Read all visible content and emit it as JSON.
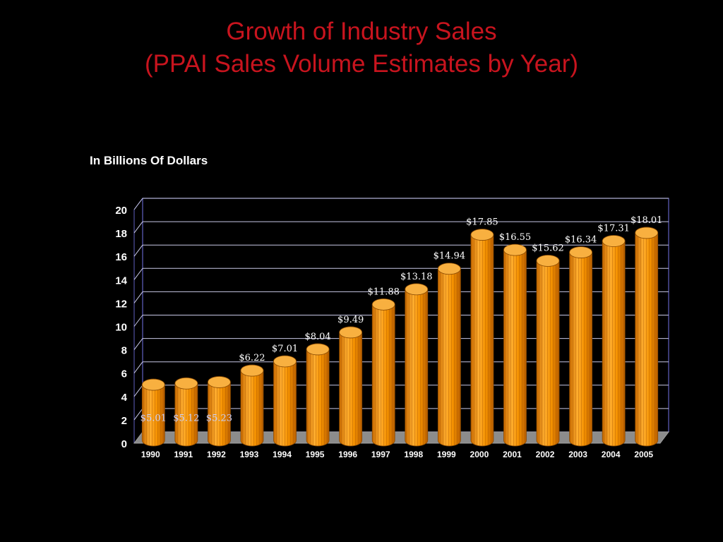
{
  "chart_data": {
    "type": "bar",
    "title_line1": "Growth of Industry Sales",
    "title_line2": "(PPAI Sales Volume Estimates by Year)",
    "ylabel": "In Billions Of Dollars",
    "categories": [
      "1990",
      "1991",
      "1992",
      "1993",
      "1994",
      "1995",
      "1996",
      "1997",
      "1998",
      "1999",
      "2000",
      "2001",
      "2002",
      "2003",
      "2004",
      "2005"
    ],
    "values": [
      5.01,
      5.12,
      5.23,
      6.22,
      7.01,
      8.04,
      9.49,
      11.88,
      13.18,
      14.94,
      17.85,
      16.55,
      15.62,
      16.34,
      17.31,
      18.01
    ],
    "data_labels": [
      "$5.01",
      "$5.12",
      "$5.23",
      "$6.22",
      "$7.01",
      "$8.04",
      "$9.49",
      "$11.88",
      "$13.18",
      "$14.94",
      "$17.85",
      "$16.55",
      "$15.62",
      "$16.34",
      "$17.31",
      "$18.01"
    ],
    "ylim": [
      0,
      20
    ],
    "yticks": [
      "0",
      "2",
      "4",
      "6",
      "8",
      "10",
      "12",
      "14",
      "16",
      "18",
      "20"
    ],
    "grid": true,
    "legend": "none",
    "colors": {
      "bar": "#f39a10",
      "bar_dark": "#b85e00",
      "bar_top": "#f8b040",
      "label": "#ffffff",
      "label_inside": "#c8d0ff",
      "grid": "#c8c8e6",
      "frame": "#6060c0",
      "floor": "#8c8c8c",
      "title": "#c8141e"
    }
  }
}
